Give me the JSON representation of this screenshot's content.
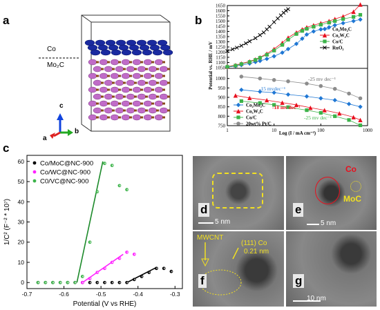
{
  "panels": {
    "a": {
      "letter": "a",
      "labels": {
        "top": "Co",
        "bottom": "Mo₂C"
      },
      "axes": {
        "a": "a",
        "b": "b",
        "c": "c"
      }
    },
    "b": {
      "letter": "b"
    },
    "c": {
      "letter": "c"
    },
    "d": {
      "letter": "d",
      "scale": "5 nm"
    },
    "e": {
      "letter": "e",
      "scale": "5 nm",
      "labels": {
        "co": "Co",
        "moc": "MoC"
      }
    },
    "f": {
      "letter": "f",
      "labels": {
        "mwcnt": "MWCNT",
        "lattice1": "(111) Co",
        "lattice2": "0.21 nm"
      }
    },
    "g": {
      "letter": "g",
      "scale": "10 nm"
    }
  },
  "colors": {
    "blue": "#1f77d4",
    "red": "#e8101e",
    "green": "#3cb34a",
    "gray": "#8c8c8c",
    "black": "#000000",
    "magenta": "#ff22ff",
    "dkgreen": "#1c8a2a",
    "yellow": "#f2e022",
    "co_atom": "#1a2aa0",
    "mo_atom": "#c06cc8"
  },
  "chart_data": [
    {
      "type": "line",
      "panel": "b-top",
      "ylabel": "Potential vs. RHE / mV",
      "xscale": "log",
      "xlim": [
        1,
        1000
      ],
      "ylim": [
        1050,
        1650
      ],
      "yticks": [
        1050,
        1100,
        1150,
        1200,
        1250,
        1300,
        1350,
        1400,
        1450,
        1500,
        1550,
        1600,
        1650
      ],
      "series": [
        {
          "name": "Co₂Mo₂C",
          "color": "#1f77d4",
          "marker": "diamond",
          "x": [
            1,
            1.5,
            2,
            3,
            4,
            5,
            7,
            10,
            15,
            20,
            30,
            40,
            50,
            70,
            100,
            150,
            200,
            300,
            500,
            700
          ],
          "y": [
            1055,
            1065,
            1075,
            1090,
            1105,
            1115,
            1135,
            1160,
            1195,
            1230,
            1280,
            1330,
            1370,
            1400,
            1420,
            1440,
            1460,
            1480,
            1500,
            1515
          ]
        },
        {
          "name": "Co₂W₂C",
          "color": "#e8101e",
          "marker": "triangle",
          "x": [
            1,
            1.5,
            2,
            3,
            4,
            5,
            7,
            10,
            15,
            20,
            30,
            40,
            50,
            70,
            100,
            150,
            200,
            300,
            500,
            700
          ],
          "y": [
            1060,
            1075,
            1090,
            1110,
            1130,
            1150,
            1185,
            1230,
            1290,
            1340,
            1390,
            1420,
            1440,
            1460,
            1480,
            1500,
            1520,
            1545,
            1590,
            1660
          ]
        },
        {
          "name": "Co/C",
          "color": "#3cb34a",
          "marker": "square",
          "x": [
            1,
            1.5,
            2,
            3,
            4,
            5,
            7,
            10,
            15,
            20,
            30,
            40,
            50,
            70,
            100,
            150,
            200,
            300,
            500,
            700
          ],
          "y": [
            1058,
            1070,
            1085,
            1105,
            1125,
            1145,
            1175,
            1215,
            1270,
            1320,
            1375,
            1405,
            1425,
            1445,
            1465,
            1485,
            1500,
            1520,
            1540,
            1560
          ]
        },
        {
          "name": "RuO₂",
          "color": "#000000",
          "marker": "x",
          "x": [
            1,
            1.3,
            1.6,
            2,
            2.5,
            3,
            4,
            5,
            6,
            7,
            8,
            10,
            12,
            14,
            16,
            18,
            20
          ],
          "y": [
            1210,
            1228,
            1243,
            1262,
            1285,
            1305,
            1335,
            1365,
            1390,
            1420,
            1445,
            1490,
            1525,
            1555,
            1580,
            1600,
            1615
          ]
        }
      ]
    },
    {
      "type": "line",
      "panel": "b-bottom",
      "xlabel": "Log (I / mA cm⁻²)",
      "ylabel": "Potential vs. RHE / mV",
      "xscale": "log",
      "xlim": [
        1,
        1000
      ],
      "ylim": [
        750,
        1050
      ],
      "yticks": [
        750,
        800,
        850,
        900,
        950,
        1000
      ],
      "xticks": [
        "1",
        "10",
        "100",
        "1000"
      ],
      "annotations": [
        "-15 mvdec⁻¹",
        "-18 mv dec⁻¹",
        "-25 mv dec⁻¹",
        "-25 mv dec⁻¹"
      ],
      "series": [
        {
          "name": "Co₂Mo₂C",
          "color": "#1f77d4",
          "marker": "diamond",
          "x": [
            2,
            5,
            10,
            20,
            50,
            100,
            200,
            400,
            700
          ],
          "y": [
            940,
            930,
            925,
            915,
            905,
            895,
            885,
            865,
            850
          ]
        },
        {
          "name": "Co₃W₃C",
          "color": "#e8101e",
          "marker": "triangle",
          "x": [
            1.5,
            3,
            7,
            15,
            30,
            60,
            120,
            250,
            500,
            700
          ],
          "y": [
            910,
            897,
            885,
            872,
            860,
            845,
            832,
            815,
            795,
            780
          ]
        },
        {
          "name": "Co/C",
          "color": "#3cb34a",
          "marker": "square",
          "x": [
            2,
            5,
            10,
            20,
            50,
            100,
            200,
            400,
            700
          ],
          "y": [
            880,
            870,
            860,
            848,
            832,
            818,
            800,
            780,
            752
          ]
        },
        {
          "name": "20wt% Pt/C",
          "color": "#8c8c8c",
          "marker": "circle",
          "x": [
            2,
            5,
            10,
            20,
            50,
            100,
            200,
            400,
            700
          ],
          "y": [
            1010,
            1000,
            992,
            985,
            973,
            960,
            945,
            920,
            895
          ]
        }
      ]
    },
    {
      "type": "scatter",
      "panel": "c",
      "xlabel": "Potential (V vs RHE)",
      "ylabel": "1/C² (F⁻² * 10⁷)",
      "xlim": [
        -0.7,
        -0.28
      ],
      "ylim": [
        -3,
        63
      ],
      "xticks": [
        -0.7,
        -0.6,
        -0.5,
        -0.4,
        -0.3
      ],
      "yticks": [
        0,
        10,
        20,
        30,
        40,
        50,
        60
      ],
      "series": [
        {
          "name": "Co/MoC@NC-900",
          "color": "#000000",
          "x": [
            -0.67,
            -0.65,
            -0.63,
            -0.61,
            -0.59,
            -0.57,
            -0.55,
            -0.53,
            -0.51,
            -0.49,
            -0.47,
            -0.45,
            -0.43,
            -0.41,
            -0.39,
            -0.37,
            -0.35,
            -0.33,
            -0.31
          ],
          "y": [
            0,
            0,
            0,
            0,
            0,
            0,
            0,
            0,
            0,
            0,
            0,
            0,
            0,
            1.5,
            3,
            5,
            7,
            7,
            5.5
          ]
        },
        {
          "name": "Co/WC@NC-900",
          "color": "#ff22ff",
          "x": [
            -0.57,
            -0.55,
            -0.53,
            -0.51,
            -0.49,
            -0.47,
            -0.45,
            -0.43,
            -0.41
          ],
          "y": [
            0,
            0,
            2,
            5,
            7,
            10,
            12,
            15,
            14
          ]
        },
        {
          "name": "C0/VC@NC-900",
          "color": "#3cb34a",
          "x": [
            -0.67,
            -0.65,
            -0.63,
            -0.61,
            -0.59,
            -0.57,
            -0.55,
            -0.53,
            -0.51,
            -0.49,
            -0.47,
            -0.45,
            -0.43
          ],
          "y": [
            0,
            0,
            0,
            0,
            0,
            0,
            3,
            20,
            45,
            59,
            58,
            48,
            46
          ]
        }
      ],
      "fits": [
        {
          "color": "#000000",
          "x": [
            -0.43,
            -0.35
          ],
          "y": [
            0,
            7.5
          ]
        },
        {
          "color": "#ff22ff",
          "x": [
            -0.55,
            -0.44
          ],
          "y": [
            0,
            14
          ]
        },
        {
          "color": "#1c8a2a",
          "x": [
            -0.565,
            -0.495
          ],
          "y": [
            0,
            60
          ]
        }
      ]
    }
  ]
}
